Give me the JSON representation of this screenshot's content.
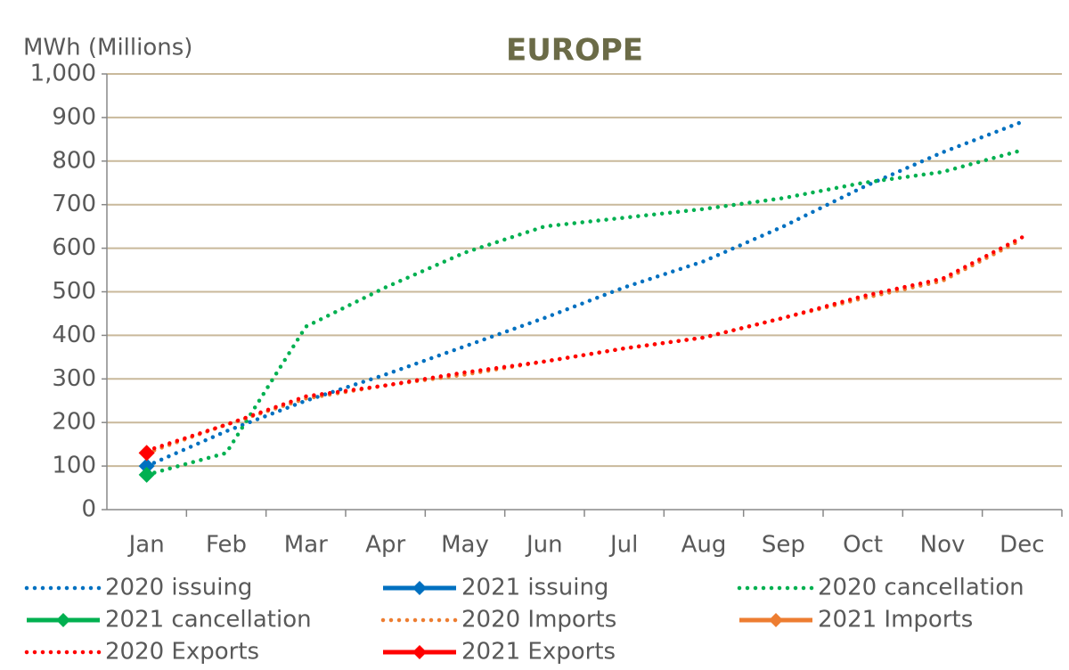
{
  "chart_data": {
    "type": "line",
    "title": "EUROPE",
    "y_label": "MWh (Millions)",
    "categories": [
      "Jan",
      "Feb",
      "Mar",
      "Apr",
      "May",
      "Jun",
      "Jul",
      "Aug",
      "Sep",
      "Oct",
      "Nov",
      "Dec"
    ],
    "ylim": [
      0,
      1000
    ],
    "yticks": [
      0,
      100,
      200,
      300,
      400,
      500,
      600,
      700,
      800,
      900,
      {
        "value": 1000,
        "label": "1,000"
      }
    ],
    "grid": true,
    "legend": "bottom",
    "series": [
      {
        "name": "2020 issuing",
        "color": "#0070c0",
        "line_style": "dotted",
        "values": [
          100,
          180,
          250,
          310,
          375,
          440,
          510,
          570,
          650,
          740,
          820,
          890
        ]
      },
      {
        "name": "2021 issuing",
        "color": "#0070c0",
        "line_style": "solid",
        "marker": "diamond",
        "values": [
          100,
          null,
          null,
          null,
          null,
          null,
          null,
          null,
          null,
          null,
          null,
          null
        ]
      },
      {
        "name": "2020 cancellation",
        "color": "#00b050",
        "line_style": "dotted",
        "values": [
          80,
          130,
          420,
          510,
          590,
          650,
          670,
          690,
          715,
          750,
          775,
          825
        ]
      },
      {
        "name": "2021 cancellation",
        "color": "#00b050",
        "line_style": "solid",
        "marker": "diamond",
        "values": [
          80,
          null,
          null,
          null,
          null,
          null,
          null,
          null,
          null,
          null,
          null,
          null
        ]
      },
      {
        "name": "2020 Imports",
        "color": "#ed7d31",
        "line_style": "dotted",
        "values": [
          130,
          195,
          255,
          285,
          310,
          340,
          370,
          395,
          440,
          485,
          525,
          620
        ]
      },
      {
        "name": "2021 Imports",
        "color": "#ed7d31",
        "line_style": "solid",
        "marker": "diamond",
        "values": [
          130,
          null,
          null,
          null,
          null,
          null,
          null,
          null,
          null,
          null,
          null,
          null
        ]
      },
      {
        "name": "2020 Exports",
        "color": "#ff0000",
        "line_style": "dotted",
        "values": [
          135,
          195,
          260,
          285,
          315,
          340,
          370,
          395,
          440,
          490,
          530,
          625
        ]
      },
      {
        "name": "2021 Exports",
        "color": "#ff0000",
        "line_style": "solid",
        "marker": "diamond",
        "values": [
          130,
          null,
          null,
          null,
          null,
          null,
          null,
          null,
          null,
          null,
          null,
          null
        ]
      }
    ]
  }
}
